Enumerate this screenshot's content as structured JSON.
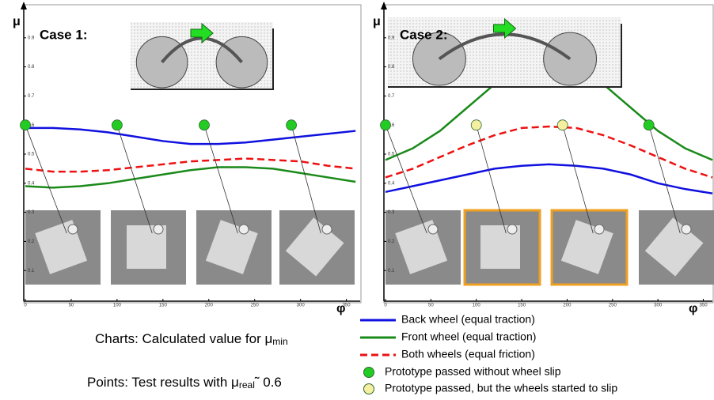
{
  "chart_data": [
    {
      "type": "line",
      "title": "Case 1:",
      "y_label": "μ",
      "x_label": "φ",
      "x": [
        0,
        30,
        60,
        90,
        120,
        150,
        180,
        210,
        240,
        270,
        300,
        330,
        360
      ],
      "series": [
        {
          "name": "Back wheel (equal traction)",
          "color": "#1010e0",
          "dash": false,
          "values": [
            0.59,
            0.59,
            0.585,
            0.575,
            0.56,
            0.545,
            0.535,
            0.535,
            0.54,
            0.55,
            0.56,
            0.57,
            0.58
          ]
        },
        {
          "name": "Front wheel (equal traction)",
          "color": "#1a8a1a",
          "dash": false,
          "values": [
            0.39,
            0.385,
            0.39,
            0.4,
            0.415,
            0.43,
            0.445,
            0.455,
            0.455,
            0.45,
            0.435,
            0.42,
            0.405
          ]
        },
        {
          "name": "Both wheels (equal friction)",
          "color": "#ee1111",
          "dash": true,
          "values": [
            0.45,
            0.44,
            0.44,
            0.445,
            0.455,
            0.465,
            0.475,
            0.48,
            0.485,
            0.48,
            0.475,
            0.46,
            0.45
          ]
        }
      ],
      "points": {
        "x": [
          0,
          100,
          195,
          290
        ],
        "y": [
          0.6,
          0.6,
          0.6,
          0.6
        ],
        "colors": [
          "#22cc22",
          "#22cc22",
          "#22cc22",
          "#22cc22"
        ]
      },
      "xlim": [
        0,
        365
      ],
      "ylim": [
        0,
        1
      ],
      "xticks": [
        0,
        50,
        100,
        150,
        200,
        250,
        300,
        350
      ],
      "yticks": [
        0.1,
        0.2,
        0.3,
        0.4,
        0.5,
        0.6,
        0.7,
        0.8,
        0.9
      ]
    },
    {
      "type": "line",
      "title": "Case 2:",
      "y_label": "μ",
      "x_label": "φ",
      "x": [
        0,
        30,
        60,
        90,
        120,
        150,
        180,
        210,
        240,
        270,
        300,
        330,
        360
      ],
      "series": [
        {
          "name": "Back wheel (equal traction)",
          "color": "#1010e0",
          "dash": false,
          "values": [
            0.37,
            0.39,
            0.41,
            0.43,
            0.45,
            0.46,
            0.465,
            0.46,
            0.45,
            0.43,
            0.4,
            0.38,
            0.365
          ]
        },
        {
          "name": "Front wheel (equal traction)",
          "color": "#1a8a1a",
          "dash": false,
          "values": [
            0.48,
            0.52,
            0.58,
            0.66,
            0.74,
            0.8,
            0.82,
            0.8,
            0.74,
            0.66,
            0.58,
            0.52,
            0.48
          ]
        },
        {
          "name": "Both wheels (equal friction)",
          "color": "#ee1111",
          "dash": true,
          "values": [
            0.42,
            0.45,
            0.49,
            0.53,
            0.565,
            0.59,
            0.595,
            0.59,
            0.565,
            0.53,
            0.49,
            0.45,
            0.42
          ]
        }
      ],
      "points": {
        "x": [
          0,
          100,
          195,
          290
        ],
        "y": [
          0.6,
          0.6,
          0.6,
          0.6
        ],
        "colors": [
          "#22cc22",
          "#f5f0a0",
          "#f5f0a0",
          "#22cc22"
        ]
      },
      "xlim": [
        0,
        360
      ],
      "ylim": [
        0,
        1
      ],
      "xticks": [
        0,
        50,
        100,
        150,
        200,
        250,
        300,
        350
      ],
      "yticks": [
        0.1,
        0.2,
        0.3,
        0.4,
        0.5,
        0.6,
        0.7,
        0.8,
        0.9
      ]
    }
  ],
  "point_legend": [
    {
      "label": "Prototype passed without wheel slip",
      "color": "#22cc22"
    },
    {
      "label": "Prototype passed, but the wheels started to slip",
      "color": "#f5f0a0"
    }
  ],
  "notes": {
    "charts": [
      "Charts: Calculated value for μ",
      "min"
    ],
    "points": [
      "Points: Test results with μ",
      "real",
      "˜ 0.6"
    ]
  }
}
